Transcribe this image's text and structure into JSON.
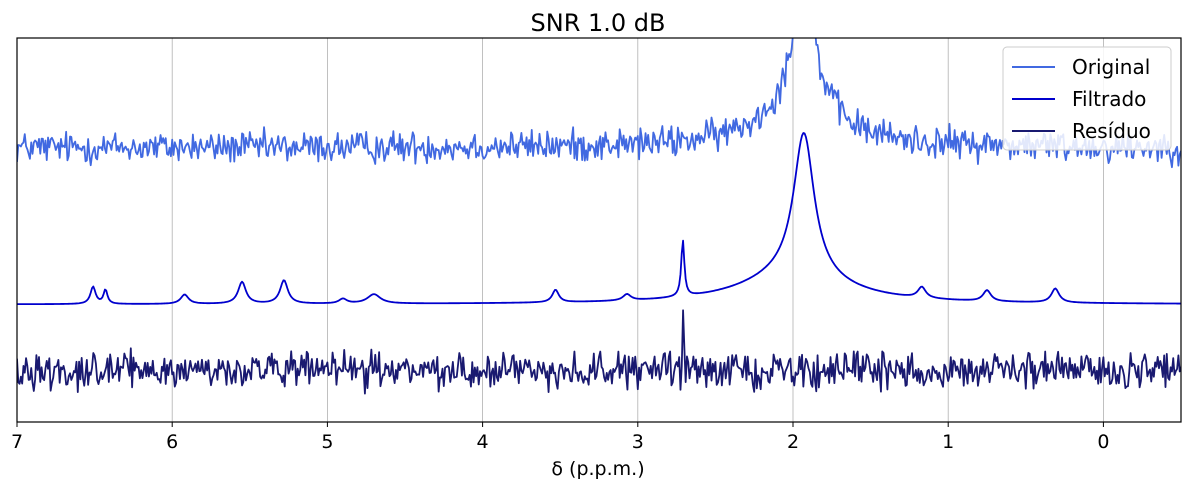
{
  "chart_data": {
    "type": "line",
    "title": "SNR 1.0 dB",
    "xlabel": "δ (p.p.m.)",
    "ylabel": "",
    "xlim": [
      7,
      -0.5
    ],
    "x_reversed": true,
    "xticks": [
      7,
      6,
      5,
      4,
      3,
      2,
      1,
      0
    ],
    "xtick_labels": [
      "7",
      "6",
      "5",
      "4",
      "3",
      "2",
      "1",
      "0"
    ],
    "ylim": [
      -0.75,
      1.7
    ],
    "y_axis_hidden": true,
    "grid": "x-major",
    "legend": "top-right",
    "series": [
      {
        "name": "Original",
        "color": "#4169e1",
        "baseline": 1.0,
        "noise_amplitude": 0.05,
        "peaks": [
          {
            "center": 1.93,
            "height": 0.85,
            "width": 0.09
          },
          {
            "center": 1.97,
            "height": 0.2,
            "width": 0.35
          }
        ]
      },
      {
        "name": "Filtrado",
        "color": "#0000cd",
        "baseline": 0.0,
        "noise_amplitude": 0,
        "peaks": [
          {
            "center": 1.93,
            "height": 0.92,
            "width": 0.08
          },
          {
            "center": 2.0,
            "height": 0.18,
            "width": 0.4
          },
          {
            "center": 2.71,
            "height": 0.36,
            "width": 0.012
          },
          {
            "center": 6.51,
            "height": 0.11,
            "width": 0.02
          },
          {
            "center": 6.43,
            "height": 0.09,
            "width": 0.015
          },
          {
            "center": 5.92,
            "height": 0.06,
            "width": 0.03
          },
          {
            "center": 5.55,
            "height": 0.14,
            "width": 0.03
          },
          {
            "center": 5.28,
            "height": 0.15,
            "width": 0.03
          },
          {
            "center": 4.9,
            "height": 0.03,
            "width": 0.03
          },
          {
            "center": 4.7,
            "height": 0.06,
            "width": 0.05
          },
          {
            "center": 3.53,
            "height": 0.08,
            "width": 0.025
          },
          {
            "center": 3.07,
            "height": 0.04,
            "width": 0.03
          },
          {
            "center": 1.17,
            "height": 0.07,
            "width": 0.03
          },
          {
            "center": 0.75,
            "height": 0.07,
            "width": 0.03
          },
          {
            "center": 0.31,
            "height": 0.09,
            "width": 0.03
          }
        ]
      },
      {
        "name": "Resíduo",
        "color": "#191970",
        "baseline": -0.42,
        "noise_amplitude": 0.055,
        "peaks": [
          {
            "center": 2.71,
            "height": 0.38,
            "width": 0.004
          }
        ]
      }
    ]
  }
}
